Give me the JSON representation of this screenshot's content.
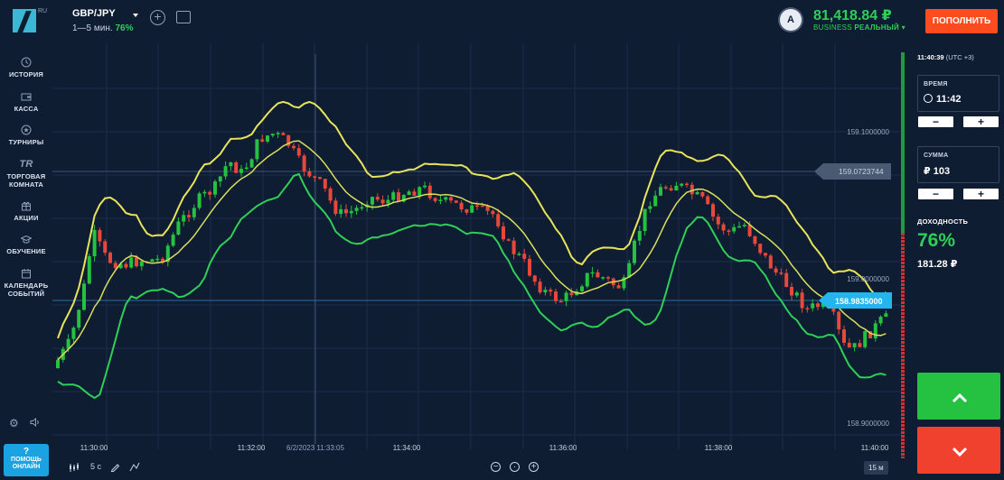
{
  "header": {
    "logo_badge": "RU",
    "asset_name": "GBP/JPY",
    "asset_expiry": "1—5 мин.",
    "asset_payout": "76%",
    "avatar_letter": "A",
    "balance": "81,418.84 ₽",
    "account_tier": "BUSINESS",
    "account_type": "РЕАЛЬНЫЙ ▾",
    "topup_label": "ПОПОЛНИТЬ"
  },
  "sidebar": {
    "items": [
      {
        "label": "ИСТОРИЯ",
        "icon": "history-icon"
      },
      {
        "label": "КАССА",
        "icon": "wallet-icon"
      },
      {
        "label": "ТУРНИРЫ",
        "icon": "trophy-icon"
      },
      {
        "label": "ТОРГОВАЯ КОМНАТА",
        "icon": "trading-room-icon"
      },
      {
        "label": "АКЦИИ",
        "icon": "gift-icon"
      },
      {
        "label": "ОБУЧЕНИЕ",
        "icon": "graduation-cap-icon"
      },
      {
        "label": "КАЛЕНДАРЬ СОБЫТИЙ",
        "icon": "calendar-icon"
      }
    ],
    "help_label_1": "ПОМОЩЬ",
    "help_label_2": "ОНЛАЙН"
  },
  "chart": {
    "price_labels": [
      "159.1000000",
      "159.0000000",
      "158.9000000"
    ],
    "target_price": "159.0723744",
    "current_price": "158.9835000",
    "time_labels": [
      "11:30:00",
      "11:32:00",
      "11:34:00",
      "11:36:00",
      "11:38:00",
      "11:40:00"
    ],
    "crosshair_time": "6/2/2023 11:33:05",
    "colors": {
      "up": "#25c140",
      "down": "#e8473a",
      "upper_band": "#e8e45a",
      "middle_band": "#d9df5a",
      "lower_band": "#2fcf57"
    }
  },
  "toolbar": {
    "timeframe": "5 с",
    "badge": "15 м"
  },
  "panel": {
    "clock": "11:40:39",
    "tz": "(UTC +3)",
    "time_label": "ВРЕМЯ",
    "time_value": "11:42",
    "amount_label": "СУММА",
    "amount_value": "₽ 103",
    "yield_label": "ДОХОДНОСТЬ",
    "yield_pct": "76%",
    "yield_amount": "181.28 ₽"
  }
}
